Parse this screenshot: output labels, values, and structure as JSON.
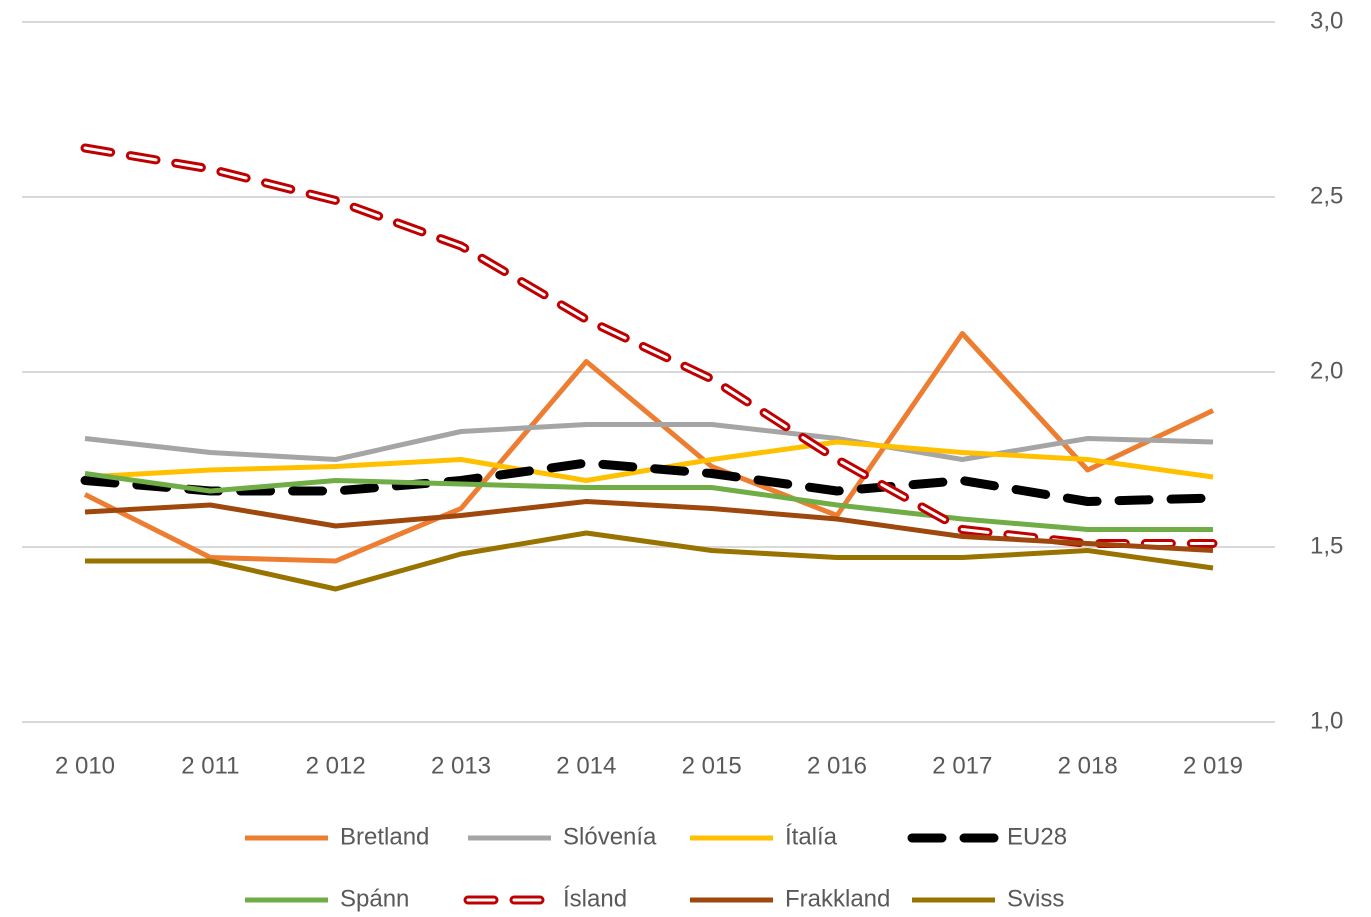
{
  "chart_data": {
    "type": "line",
    "categories": [
      "2 010",
      "2 011",
      "2 012",
      "2 013",
      "2 014",
      "2 015",
      "2 016",
      "2 017",
      "2 018",
      "2 019"
    ],
    "ylim": [
      1.0,
      3.0
    ],
    "yticks": [
      {
        "value": 1.0,
        "label": "1,0"
      },
      {
        "value": 1.5,
        "label": "1,5"
      },
      {
        "value": 2.0,
        "label": "2,0"
      },
      {
        "value": 2.5,
        "label": "2,5"
      },
      {
        "value": 3.0,
        "label": "3,0"
      }
    ],
    "grid": true,
    "y_axis_side": "right",
    "legend": "bottom",
    "series": [
      {
        "name": "Bretland",
        "color": "#ed7d31",
        "values": [
          1.65,
          1.47,
          1.46,
          1.61,
          2.03,
          1.73,
          1.59,
          2.11,
          1.72,
          1.89
        ]
      },
      {
        "name": "Slóvenía",
        "color": "#a5a5a5",
        "values": [
          1.81,
          1.77,
          1.75,
          1.83,
          1.85,
          1.85,
          1.81,
          1.75,
          1.81,
          1.8
        ]
      },
      {
        "name": "Ítalía",
        "color": "#ffc000",
        "values": [
          1.7,
          1.72,
          1.73,
          1.75,
          1.69,
          1.75,
          1.8,
          1.77,
          1.75,
          1.7
        ]
      },
      {
        "name": "EU28",
        "color": "#000000",
        "dashed": true,
        "values": [
          1.69,
          1.66,
          1.66,
          1.69,
          1.74,
          1.71,
          1.66,
          1.69,
          1.63,
          1.64
        ]
      },
      {
        "name": "Spánn",
        "color": "#70ad47",
        "values": [
          1.71,
          1.66,
          1.69,
          1.68,
          1.67,
          1.67,
          1.62,
          1.58,
          1.55,
          1.55
        ]
      },
      {
        "name": "Ísland",
        "color": "#c00000",
        "dashed": true,
        "double": true,
        "values": [
          2.64,
          2.58,
          2.49,
          2.36,
          2.15,
          1.98,
          1.75,
          1.55,
          1.51,
          1.51
        ]
      },
      {
        "name": "Frakkland",
        "color": "#9e480e",
        "values": [
          1.6,
          1.62,
          1.56,
          1.59,
          1.63,
          1.61,
          1.58,
          1.53,
          1.51,
          1.49
        ]
      },
      {
        "name": "Sviss",
        "color": "#997300",
        "values": [
          1.46,
          1.46,
          1.38,
          1.48,
          1.54,
          1.49,
          1.47,
          1.47,
          1.49,
          1.44
        ]
      }
    ]
  }
}
